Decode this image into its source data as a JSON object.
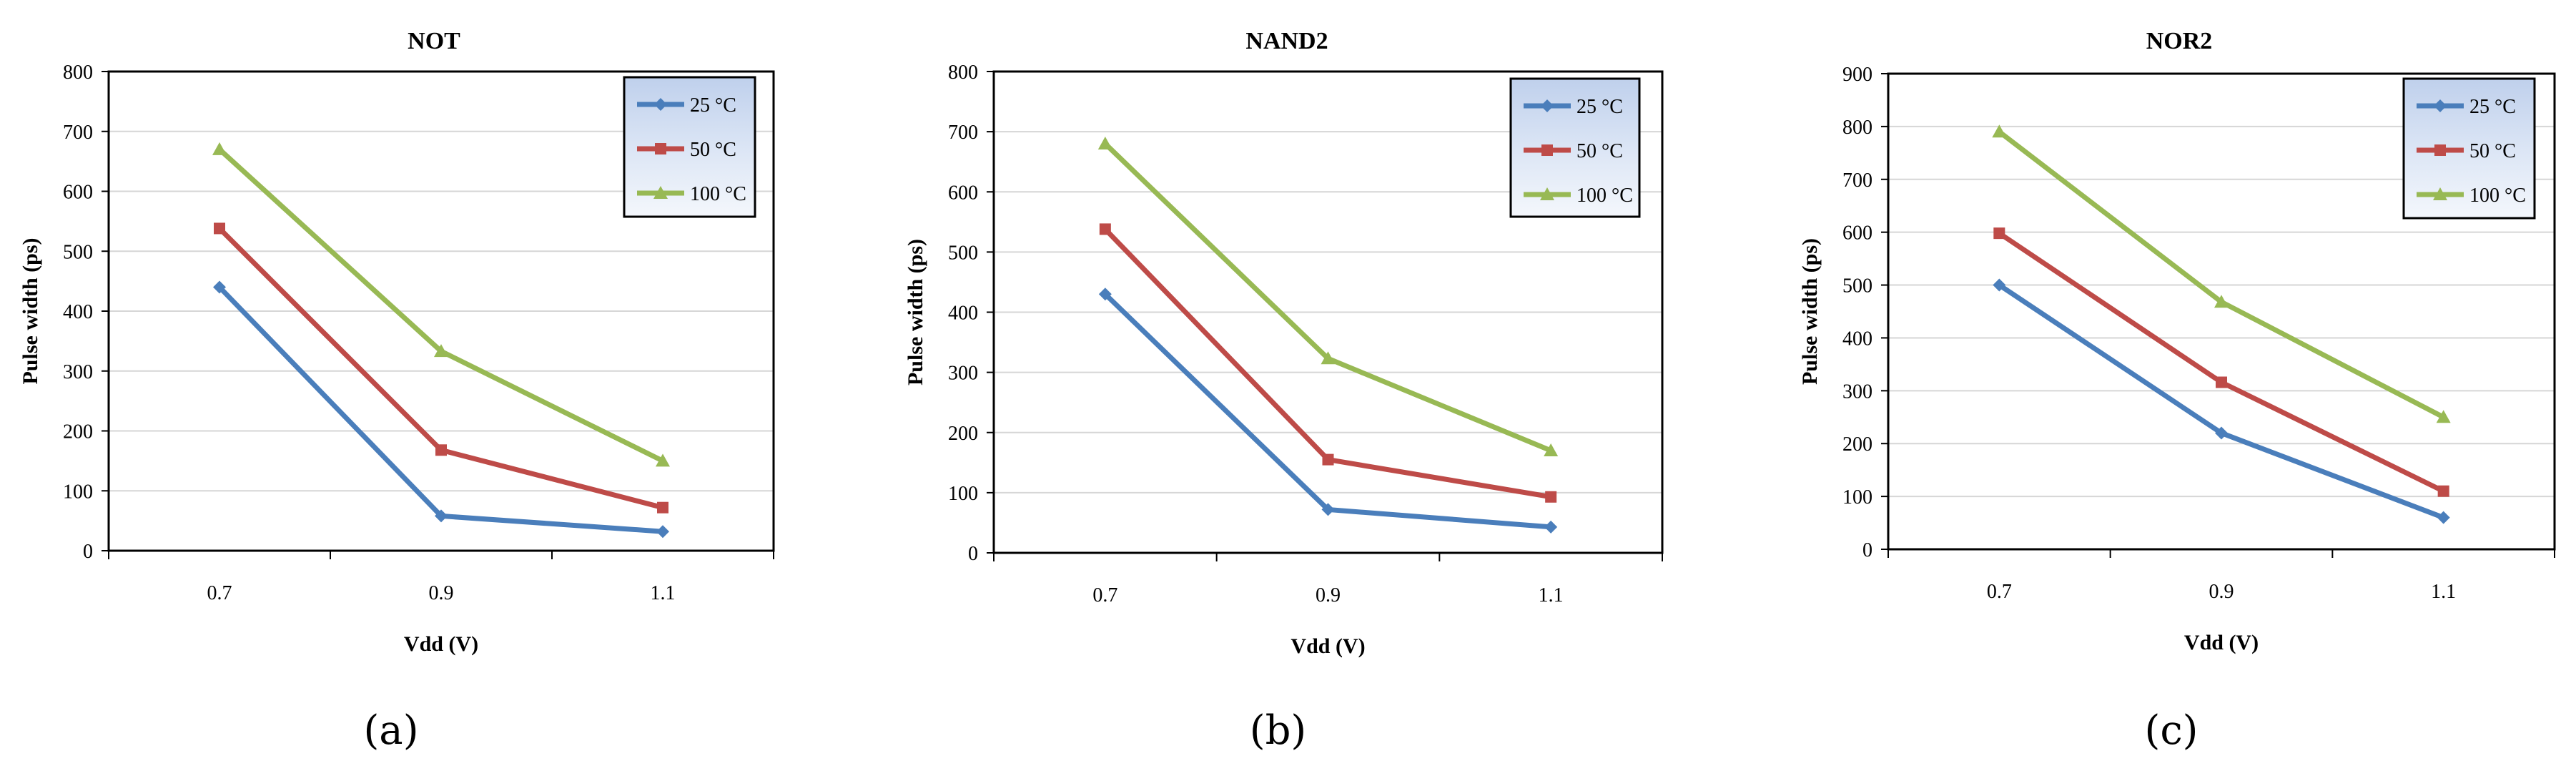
{
  "chart_data": [
    {
      "type": "line",
      "title": "NOT",
      "xlabel": "Vdd (V)",
      "ylabel": "Pulse width (ps)",
      "categories": [
        "0.7",
        "0.9",
        "1.1"
      ],
      "ylim": [
        0,
        800
      ],
      "yticks": [
        0,
        100,
        200,
        300,
        400,
        500,
        600,
        700,
        800
      ],
      "grid": true,
      "legend_position": "top-right",
      "series": [
        {
          "name": "25 °C",
          "marker": "diamond",
          "color": "#4a7ebb",
          "values": [
            440,
            58,
            32
          ]
        },
        {
          "name": "50 °C",
          "marker": "square",
          "color": "#be4b48",
          "values": [
            538,
            168,
            72
          ]
        },
        {
          "name": "100 °C",
          "marker": "triangle",
          "color": "#98b954",
          "values": [
            670,
            333,
            150
          ]
        }
      ],
      "caption": "(a)"
    },
    {
      "type": "line",
      "title": "NAND2",
      "xlabel": "Vdd (V)",
      "ylabel": "Pulse width (ps)",
      "categories": [
        "0.7",
        "0.9",
        "1.1"
      ],
      "ylim": [
        0,
        800
      ],
      "yticks": [
        0,
        100,
        200,
        300,
        400,
        500,
        600,
        700,
        800
      ],
      "grid": true,
      "legend_position": "top-right",
      "series": [
        {
          "name": "25 °C",
          "marker": "diamond",
          "color": "#4a7ebb",
          "values": [
            430,
            72,
            43
          ]
        },
        {
          "name": "50 °C",
          "marker": "square",
          "color": "#be4b48",
          "values": [
            538,
            155,
            93
          ]
        },
        {
          "name": "100 °C",
          "marker": "triangle",
          "color": "#98b954",
          "values": [
            680,
            323,
            170
          ]
        }
      ],
      "caption": "(b)"
    },
    {
      "type": "line",
      "title": "NOR2",
      "xlabel": "Vdd (V)",
      "ylabel": "Pulse width (ps)",
      "categories": [
        "0.7",
        "0.9",
        "1.1"
      ],
      "ylim": [
        0,
        900
      ],
      "yticks": [
        0,
        100,
        200,
        300,
        400,
        500,
        600,
        700,
        800,
        900
      ],
      "grid": true,
      "legend_position": "top-right",
      "series": [
        {
          "name": "25 °C",
          "marker": "diamond",
          "color": "#4a7ebb",
          "values": [
            500,
            220,
            60
          ]
        },
        {
          "name": "50 °C",
          "marker": "square",
          "color": "#be4b48",
          "values": [
            598,
            316,
            110
          ]
        },
        {
          "name": "100 °C",
          "marker": "triangle",
          "color": "#98b954",
          "values": [
            790,
            468,
            250
          ]
        }
      ],
      "caption": "(c)"
    }
  ]
}
